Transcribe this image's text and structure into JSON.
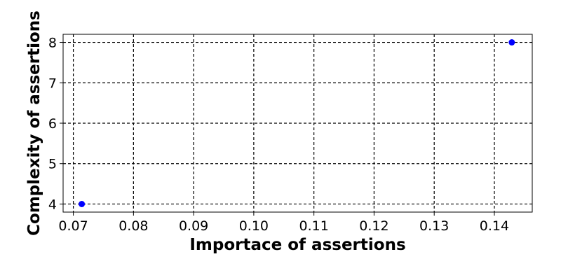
{
  "chart_data": {
    "type": "scatter",
    "title": "",
    "xlabel": "Importace of assertions",
    "ylabel": "Complexity of assertions",
    "xlim": [
      0.0683,
      0.1463
    ],
    "ylim": [
      3.8,
      8.2
    ],
    "xticks": [
      "0.07",
      "0.08",
      "0.09",
      "0.10",
      "0.11",
      "0.12",
      "0.13",
      "0.14"
    ],
    "yticks": [
      "4",
      "5",
      "6",
      "7",
      "8"
    ],
    "grid": true,
    "grid_style": "dashed",
    "series": [
      {
        "color": "#0000ff",
        "points": [
          {
            "x": 0.0714,
            "y": 4
          },
          {
            "x": 0.1429,
            "y": 8
          }
        ]
      }
    ]
  }
}
